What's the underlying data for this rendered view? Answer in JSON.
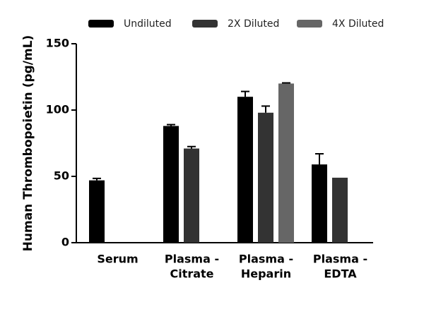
{
  "chart_data": {
    "type": "bar",
    "y_label": "Human Thrombopoietin (pg/mL)",
    "categories": [
      [
        "Serum"
      ],
      [
        "Plasma -",
        "Citrate"
      ],
      [
        "Plasma -",
        "Heparin"
      ],
      [
        "Plasma -",
        "EDTA"
      ]
    ],
    "series": [
      {
        "name": "Undiluted",
        "color": "#000000",
        "values": [
          47,
          88,
          110,
          59
        ],
        "errors": [
          1.5,
          1,
          4,
          8
        ]
      },
      {
        "name": "2X Diluted",
        "color": "#333333",
        "values": [
          null,
          71,
          98,
          49
        ],
        "errors": [
          null,
          1.5,
          5,
          null
        ]
      },
      {
        "name": "4X Diluted",
        "color": "#666666",
        "values": [
          null,
          null,
          120,
          null
        ],
        "errors": [
          null,
          null,
          0.5,
          null
        ]
      }
    ],
    "ylim": [
      0,
      150
    ],
    "yticks": [
      0,
      50,
      100,
      150
    ]
  }
}
